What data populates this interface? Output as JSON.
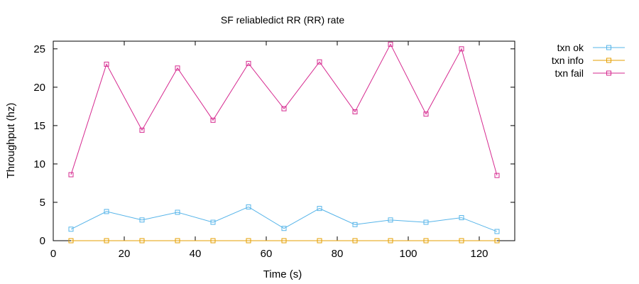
{
  "chart_data": {
    "type": "line",
    "title": "SF reliabledict RR (RR)  rate",
    "xlabel": "Time (s)",
    "ylabel": "Throughput (hz)",
    "xlim": [
      0,
      130
    ],
    "ylim": [
      0,
      26
    ],
    "xticks": [
      0,
      20,
      40,
      60,
      80,
      100,
      120
    ],
    "yticks": [
      0,
      5,
      10,
      15,
      20,
      25
    ],
    "grid": false,
    "legend_position": "outside-top-right",
    "marker": "square",
    "x": [
      5,
      15,
      25,
      35,
      45,
      55,
      65,
      75,
      85,
      95,
      105,
      115,
      125
    ],
    "series": [
      {
        "name": "txn ok",
        "color": "#56b4e9",
        "values": [
          1.5,
          3.8,
          2.7,
          3.7,
          2.4,
          4.4,
          1.6,
          4.2,
          2.1,
          2.7,
          2.4,
          3.0,
          1.2
        ]
      },
      {
        "name": "txn info",
        "color": "#e69f00",
        "values": [
          0,
          0,
          0,
          0,
          0,
          0,
          0,
          0,
          0,
          0,
          0,
          0,
          0
        ]
      },
      {
        "name": "txn fail",
        "color": "#d6298f",
        "values": [
          8.6,
          23.0,
          14.4,
          22.5,
          15.7,
          23.1,
          17.2,
          23.3,
          16.8,
          25.6,
          16.5,
          25.0,
          8.5
        ]
      }
    ]
  }
}
